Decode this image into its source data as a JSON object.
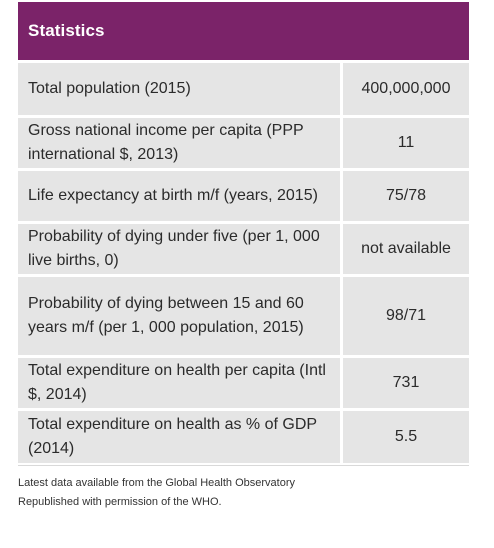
{
  "header": {
    "title": "Statistics"
  },
  "rows": [
    {
      "label": "Total population (2015)",
      "value": "400,000,000"
    },
    {
      "label": "Gross national income per capita (PPP international $, 2013)",
      "value": "11"
    },
    {
      "label": "Life expectancy at birth m/f (years, 2015)",
      "value": "75/78"
    },
    {
      "label": "Probability of dying under five (per 1, 000 live births, 0)",
      "value": "not available"
    },
    {
      "label": "Probability of dying between 15 and 60 years m/f (per 1, 000 population, 2015)",
      "value": "98/71"
    },
    {
      "label": "Total expenditure on health per capita (Intl $, 2014)",
      "value": "731"
    },
    {
      "label": "Total expenditure on health as % of GDP (2014)",
      "value": "5.5"
    }
  ],
  "footnote": {
    "line1": "Latest data available from the Global Health Observatory",
    "line2": "Republished with permission of the WHO."
  },
  "colors": {
    "header_bg": "#7b2369",
    "row_bg": "#e5e5e5",
    "header_text": "#ffffff"
  }
}
